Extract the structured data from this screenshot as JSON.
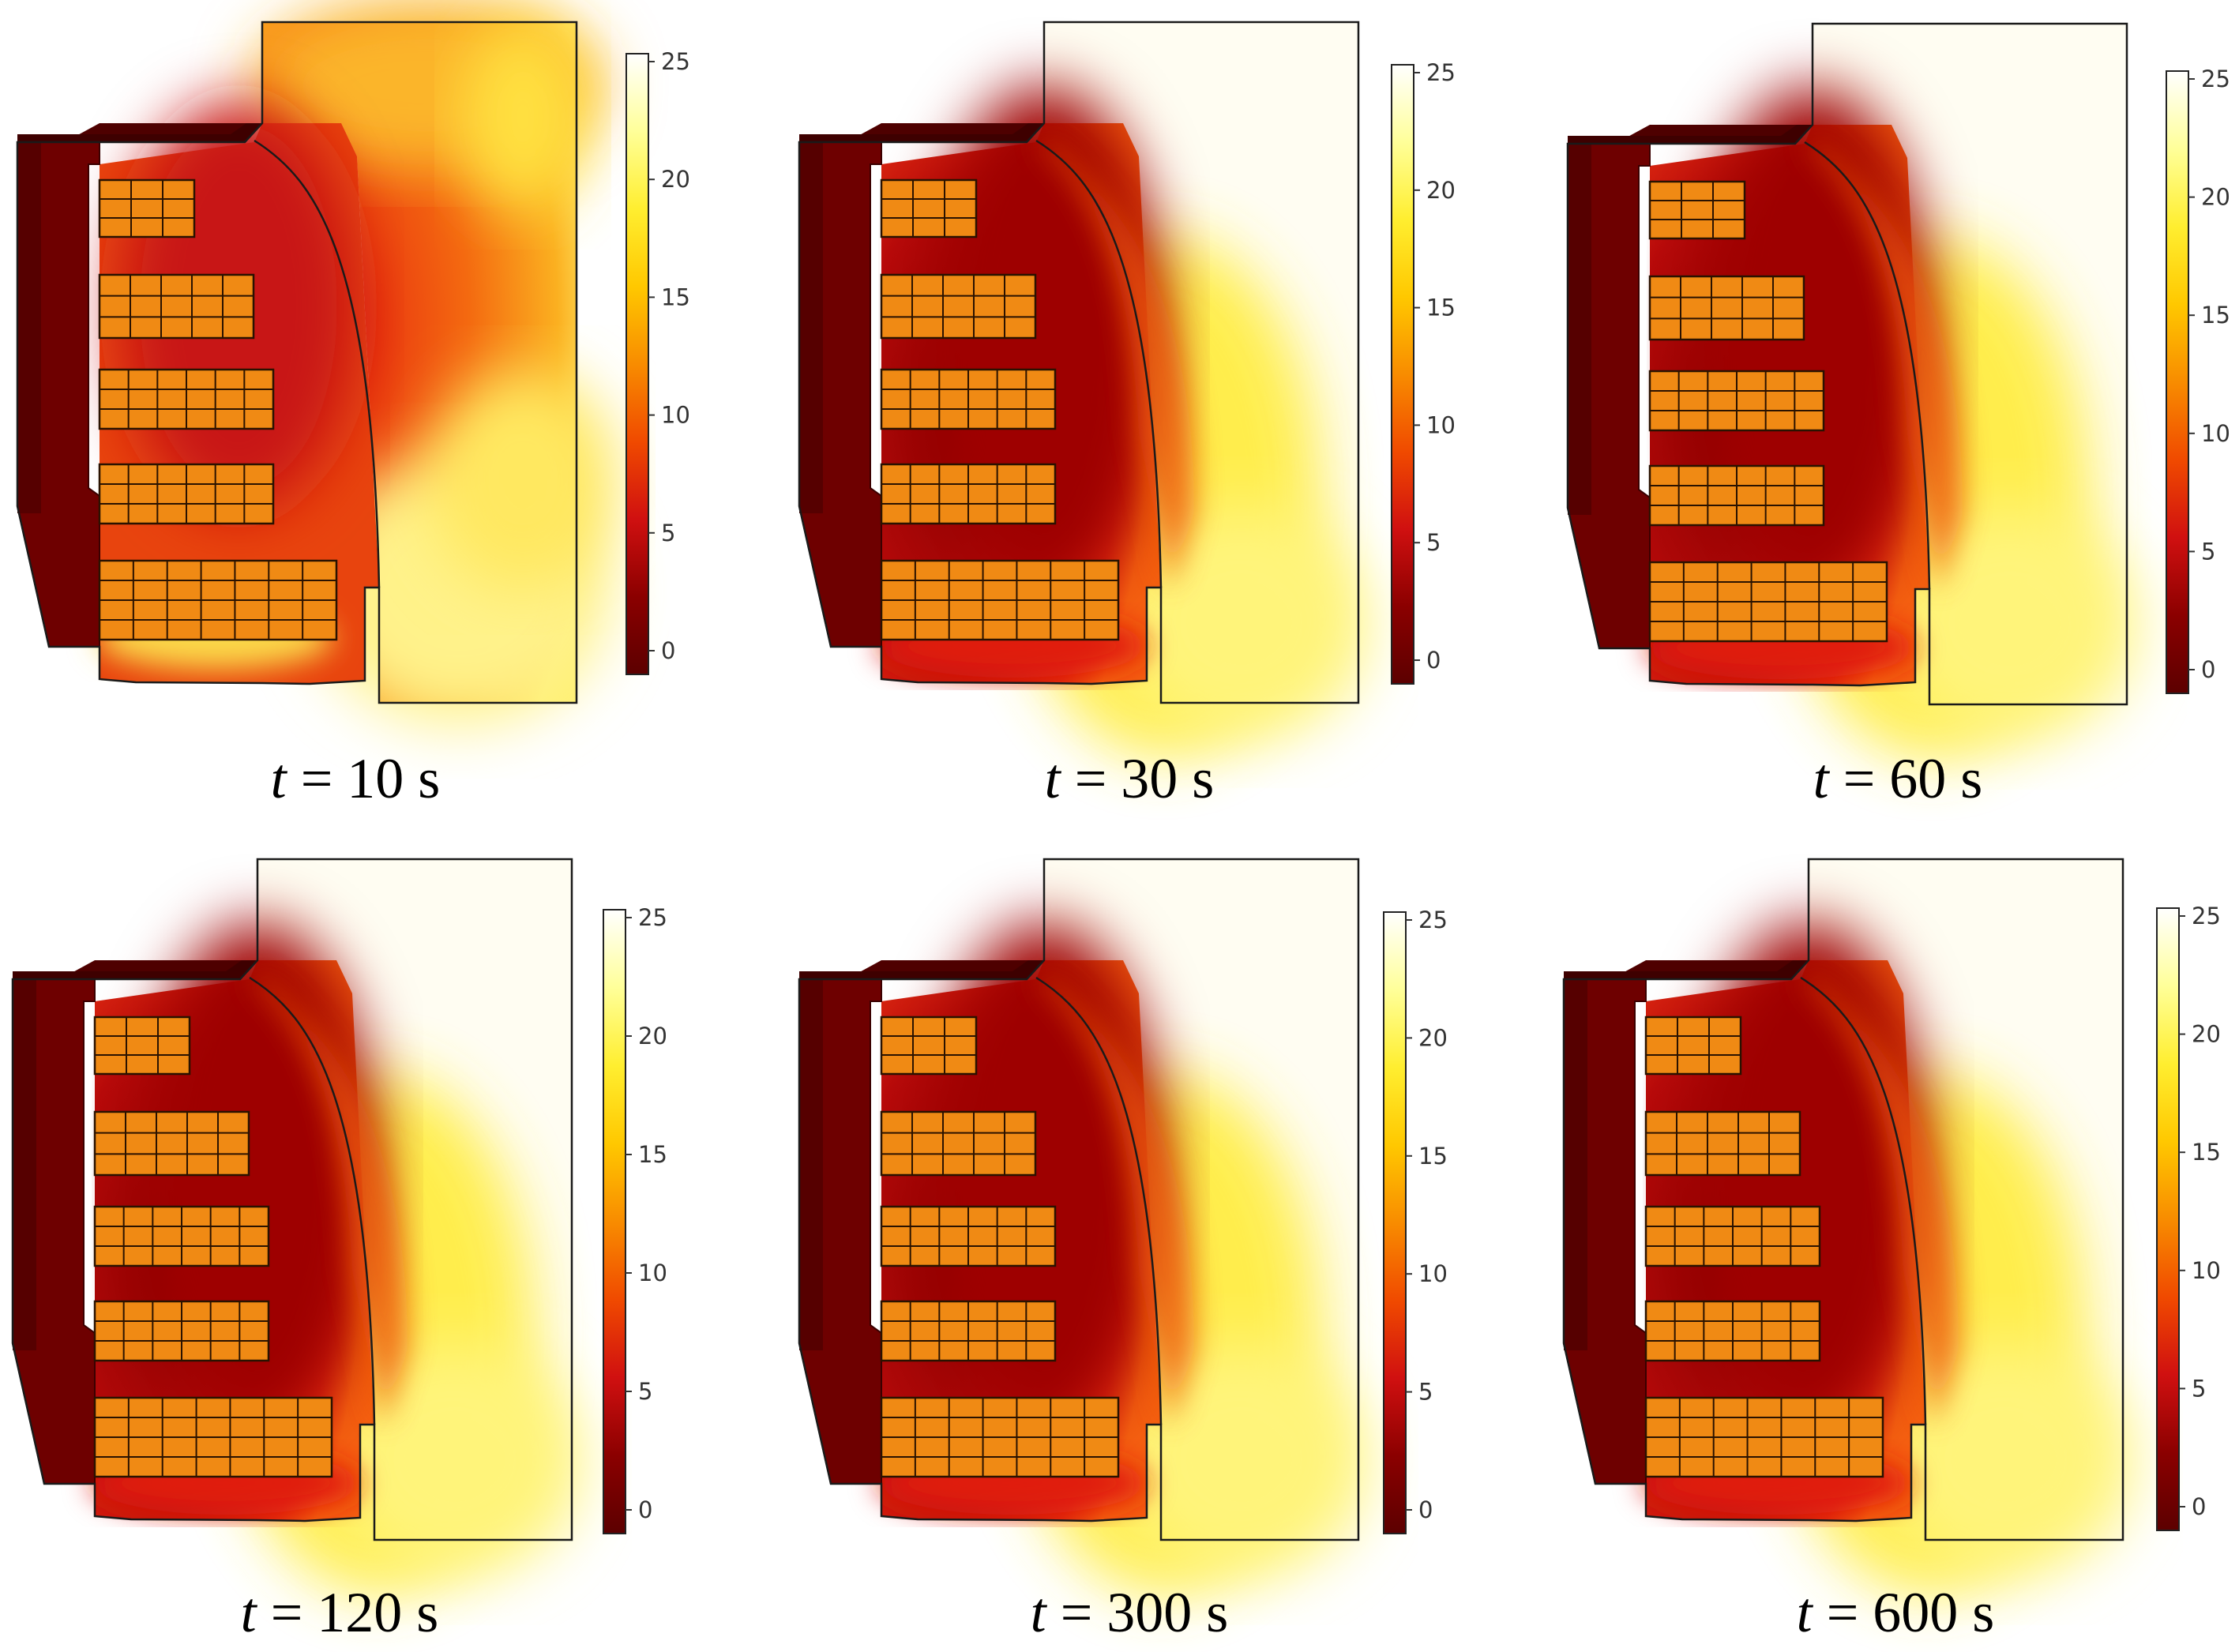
{
  "colorbar": {
    "ticks": [
      "0",
      "5",
      "10",
      "15",
      "20",
      "25"
    ],
    "colors": [
      "#5c0000",
      "#8b0000",
      "#d01010",
      "#f04a00",
      "#f88c00",
      "#ffc800",
      "#ffee30",
      "#ffff99",
      "#ffffff"
    ]
  },
  "panels": [
    {
      "var": "t",
      "rest": " = 10 s"
    },
    {
      "var": "t",
      "rest": " = 30 s"
    },
    {
      "var": "t",
      "rest": " = 60 s"
    },
    {
      "var": "t",
      "rest": " = 120 s"
    },
    {
      "var": "t",
      "rest": " = 300 s"
    },
    {
      "var": "t",
      "rest": " = 600 s"
    }
  ],
  "colors": {
    "wall": "#6e0000",
    "wall_dark": "#4e0000",
    "shelf_fill": "#f08a14",
    "grid_line": "#2a1200",
    "cool_air": "#c41818",
    "warm_air": "#ffff99",
    "ambient": "#fffdf2",
    "early_air": "#f06a10"
  }
}
